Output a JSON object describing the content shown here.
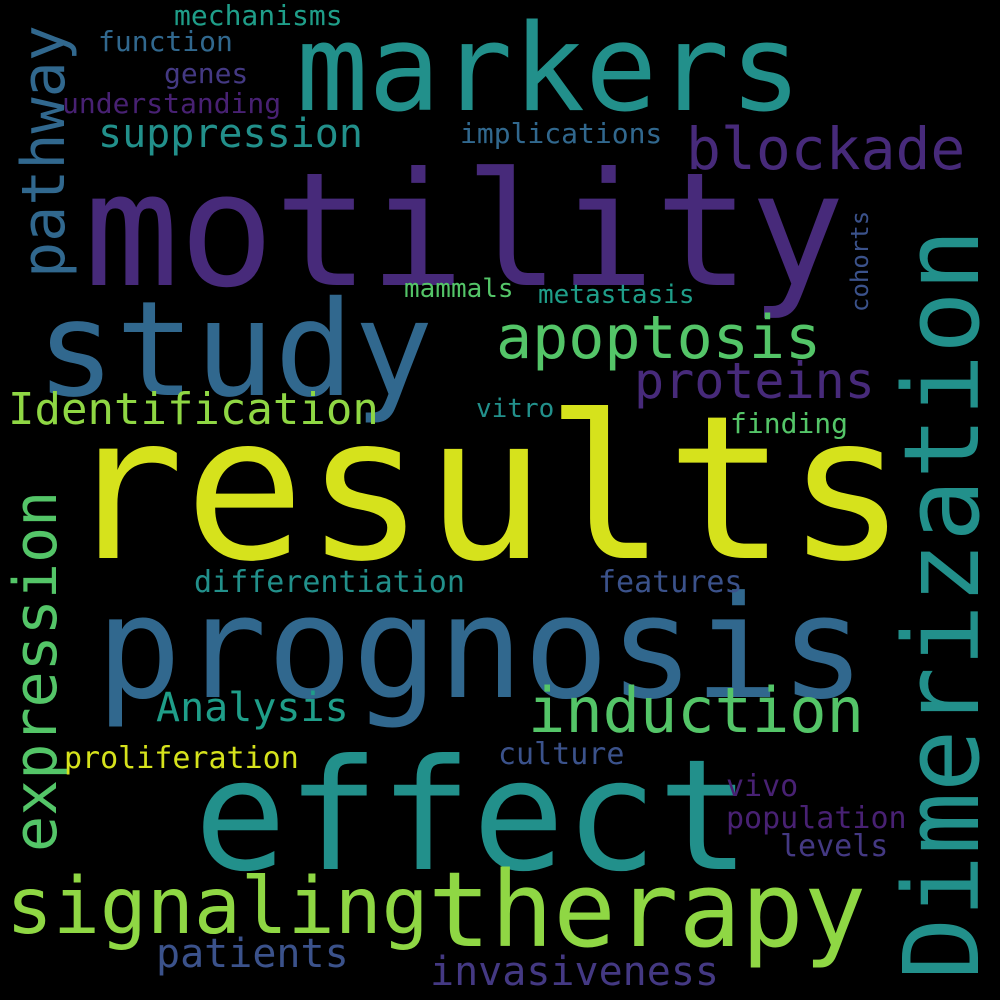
{
  "palette": {
    "background": "#000000",
    "yellow": "#d6e21c",
    "lightgreen": "#8fd744",
    "green": "#54c568",
    "teal": "#22908b",
    "teal2": "#1f9e89",
    "blue": "#31688e",
    "steel": "#3b528b",
    "purple": "#472a7a",
    "purple2": "#443983",
    "purple3": "#482173"
  },
  "words": {
    "results": "results",
    "prognosis": "prognosis",
    "effect": "effect",
    "motility": "motility",
    "study": "study",
    "markers": "markers",
    "therapy": "therapy",
    "signaling": "signaling",
    "dimerization": "Dimerization",
    "induction": "induction",
    "apoptosis": "apoptosis",
    "expression": "expression",
    "pathway": "pathway",
    "blockade": "blockade",
    "proteins": "proteins",
    "identification": "Identification",
    "suppression": "suppression",
    "analysis": "Analysis",
    "invasiveness": "invasiveness",
    "patients": "patients",
    "differentiation": "differentiation",
    "features": "features",
    "proliferation": "proliferation",
    "culture": "culture",
    "vivo": "vivo",
    "population": "population",
    "levels": "levels",
    "mechanisms": "mechanisms",
    "function": "function",
    "genes": "genes",
    "understanding": "understanding",
    "implications": "implications",
    "mammals": "mammals",
    "metastasis": "metastasis",
    "vitro": "vitro",
    "finding": "finding",
    "cohorts": "cohorts"
  }
}
